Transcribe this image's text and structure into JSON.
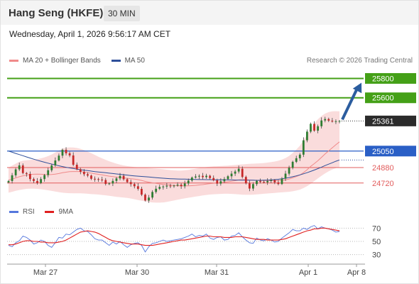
{
  "header": {
    "instrument": "Hang Seng (HKFE)",
    "interval": "30 MIN"
  },
  "datetime": "Wednesday, April 1, 2026 9:56:17 AM CET",
  "credit": "Research © 2026 Trading Central",
  "colors": {
    "up_candle": "#2e7d32",
    "down_candle": "#c62828",
    "green_level": "#44a017",
    "blue_level": "#2a5fc6",
    "red_level": "#e25c5c",
    "bollinger_fill": "#f8d0d0",
    "ma20": "#f08a8a",
    "ma50": "#2e4f9a",
    "rsi": "#5577dd",
    "rsi_ma": "#e02020",
    "arrow": "#2b5d9f"
  },
  "chart_data": [
    {
      "type": "candlestick",
      "title": "",
      "legend": [
        {
          "label": "MA 20 + Bollinger Bands",
          "color": "#f08a8a"
        },
        {
          "label": "MA 50",
          "color": "#2e4f9a"
        }
      ],
      "legend_position": "top-left",
      "x_ticks": [
        "Mar 27",
        "Mar 30",
        "Mar 31",
        "Apr 1",
        "Apr 8"
      ],
      "current_price": 25361,
      "levels": [
        {
          "value": 25800,
          "label": "25800",
          "kind": "resistance",
          "style": "box-green"
        },
        {
          "value": 25600,
          "label": "25600",
          "kind": "resistance",
          "style": "box-green"
        },
        {
          "value": 25361,
          "label": "25361",
          "kind": "last-price",
          "style": "box-dark"
        },
        {
          "value": 25050,
          "label": "25050",
          "kind": "pivot",
          "style": "box-blue"
        },
        {
          "value": 24880,
          "label": "24880",
          "kind": "support",
          "style": "text-red"
        },
        {
          "value": 24720,
          "label": "24720",
          "kind": "support",
          "style": "text-red"
        }
      ],
      "ylim": [
        24440,
        25950
      ],
      "close": [
        24741,
        24800,
        24861,
        24902,
        24823,
        24814,
        24761,
        24741,
        24721,
        24761,
        24802,
        24852,
        24902,
        24953,
        25003,
        25063,
        25027,
        25005,
        24909,
        24862,
        24836,
        24811,
        24797,
        24764,
        24761,
        24756,
        24751,
        24711,
        24716,
        24742,
        24768,
        24794,
        24759,
        24730,
        24709,
        24687,
        24660,
        24600,
        24540,
        24570,
        24628,
        24661,
        24680,
        24684,
        24693,
        24687,
        24694,
        24703,
        24687,
        24716,
        24746,
        24777,
        24787,
        24794,
        24781,
        24795,
        24772,
        24748,
        24714,
        24738,
        24761,
        24790,
        24817,
        24839,
        24868,
        24783,
        24717,
        24663,
        24709,
        24742,
        24732,
        24727,
        24741,
        24750,
        24727,
        24710,
        24766,
        24817,
        24878,
        24939,
        24976,
        25013,
        25161,
        25251,
        25331,
        25261,
        25306,
        25366,
        25381,
        25364,
        25355,
        25358,
        25361
      ],
      "ma20": [
        24750,
        24760,
        24772,
        24785,
        24795,
        24802,
        24808,
        24811,
        24812,
        24811,
        24808,
        24806,
        24808,
        24812,
        24818,
        24826,
        24832,
        24837,
        24839,
        24839,
        24837,
        24833,
        24828,
        24822,
        24816,
        24810,
        24804,
        24797,
        24791,
        24786,
        24781,
        24777,
        24773,
        24769,
        24765,
        24760,
        24755,
        24747,
        24737,
        24729,
        24722,
        24716,
        24711,
        24706,
        24702,
        24698,
        24695,
        24693,
        24691,
        24691,
        24691,
        24693,
        24696,
        24700,
        24704,
        24709,
        24714,
        24718,
        24721,
        24725,
        24729,
        24733,
        24738,
        24744,
        24752,
        24755,
        24755,
        24751,
        24748,
        24747,
        24746,
        24745,
        24745,
        24746,
        24746,
        24745,
        24748,
        24753,
        24762,
        24774,
        24787,
        24802,
        24827,
        24857,
        24892,
        24920,
        24950,
        24985,
        25020,
        25052,
        25084,
        25115,
        25145
      ],
      "bb_upper": [
        24880,
        24900,
        24920,
        24940,
        24950,
        24955,
        24958,
        24962,
        24967,
        24975,
        24985,
        24998,
        25015,
        25035,
        25055,
        25075,
        25085,
        25088,
        25087,
        25082,
        25073,
        25060,
        25045,
        25028,
        25010,
        24992,
        24975,
        24960,
        24945,
        24932,
        24920,
        24910,
        24902,
        24895,
        24890,
        24886,
        24883,
        24880,
        24877,
        24875,
        24872,
        24869,
        24866,
        24862,
        24858,
        24854,
        24851,
        24849,
        24849,
        24852,
        24856,
        24862,
        24868,
        24874,
        24880,
        24885,
        24889,
        24892,
        24894,
        24896,
        24898,
        24900,
        24903,
        24906,
        24910,
        24913,
        24916,
        24918,
        24920,
        24922,
        24924,
        24927,
        24931,
        24936,
        24942,
        24950,
        24962,
        24978,
        25000,
        25030,
        25065,
        25105,
        25160,
        25220,
        25285,
        25335,
        25378,
        25412,
        25437,
        25452,
        25460,
        25462,
        25460
      ],
      "bb_lower": [
        24620,
        24630,
        24640,
        24648,
        24655,
        24660,
        24662,
        24662,
        24660,
        24656,
        24651,
        24645,
        24639,
        24632,
        24626,
        24620,
        24617,
        24615,
        24614,
        24614,
        24614,
        24612,
        24609,
        24606,
        24604,
        24601,
        24597,
        24593,
        24588,
        24583,
        24578,
        24574,
        24570,
        24566,
        24560,
        24553,
        24545,
        24538,
        24530,
        24524,
        24520,
        24518,
        24518,
        24520,
        24525,
        24532,
        24540,
        24548,
        24555,
        24562,
        24568,
        24574,
        24580,
        24586,
        24592,
        24597,
        24601,
        24604,
        24606,
        24608,
        24609,
        24609,
        24608,
        24606,
        24603,
        24600,
        24598,
        24598,
        24600,
        24603,
        24606,
        24609,
        24612,
        24615,
        24618,
        24621,
        24624,
        24627,
        24630,
        24635,
        24642,
        24652,
        24668,
        24688,
        24712,
        24740,
        24768,
        24795,
        24820,
        24842,
        24860,
        24875,
        24886
      ],
      "ma50": [
        25050,
        25038,
        25026,
        25014,
        25002,
        24990,
        24978,
        24966,
        24955,
        24945,
        24935,
        24925,
        24916,
        24907,
        24898,
        24890,
        24883,
        24876,
        24870,
        24864,
        24858,
        24853,
        24848,
        24843,
        24838,
        24834,
        24830,
        24826,
        24822,
        24818,
        24814,
        24810,
        24806,
        24802,
        24798,
        24794,
        24791,
        24788,
        24785,
        24782,
        24779,
        24776,
        24773,
        24770,
        24767,
        24765,
        24763,
        24762,
        24761,
        24760,
        24759,
        24758,
        24757,
        24756,
        24756,
        24755,
        24755,
        24754,
        24754,
        24753,
        24753,
        24752,
        24752,
        24751,
        24751,
        24750,
        24750,
        24749,
        24749,
        24748,
        24748,
        24749,
        24750,
        24752,
        24755,
        24759,
        24764,
        24770,
        24777,
        24785,
        24794,
        24804,
        24815,
        24827,
        24840,
        24854,
        24869,
        24884,
        24900,
        24915,
        24930,
        24945,
        24958
      ]
    },
    {
      "type": "line",
      "title": "",
      "legend": [
        {
          "label": "RSI",
          "color": "#5577dd"
        },
        {
          "label": "9MA",
          "color": "#e02020"
        }
      ],
      "legend_position": "top-left",
      "ylim": [
        20,
        80
      ],
      "y_ticks": [
        70,
        50,
        30
      ],
      "x_ticks": [
        "Mar 27",
        "Mar 30",
        "Mar 31",
        "Apr 1",
        "Apr 8"
      ],
      "series": [
        {
          "name": "RSI",
          "values": [
            44,
            42,
            48,
            51,
            58,
            56,
            52,
            46,
            48,
            52,
            50,
            44,
            41,
            48,
            56,
            55,
            61,
            60,
            64,
            68,
            70,
            66,
            65,
            60,
            54,
            52,
            52,
            48,
            44,
            49,
            46,
            50,
            45,
            41,
            45,
            47,
            48,
            44,
            34,
            42,
            47,
            48,
            50,
            52,
            50,
            51,
            52,
            53,
            54,
            56,
            58,
            61,
            57,
            59,
            58,
            61,
            55,
            53,
            56,
            57,
            52,
            53,
            58,
            59,
            63,
            57,
            52,
            48,
            47,
            55,
            52,
            51,
            54,
            52,
            49,
            50,
            55,
            59,
            63,
            68,
            66,
            66,
            70,
            68,
            72,
            74,
            69,
            72,
            70,
            69,
            67,
            64,
            65
          ]
        },
        {
          "name": "9MA",
          "values": [
            45,
            45,
            46,
            48,
            50,
            51,
            51,
            50,
            50,
            49,
            49,
            48,
            48,
            48,
            49,
            50,
            52,
            55,
            58,
            61,
            64,
            65,
            66,
            65,
            64,
            62,
            59,
            56,
            53,
            51,
            50,
            49,
            48,
            47,
            46,
            46,
            46,
            45,
            44,
            44,
            44,
            45,
            46,
            47,
            48,
            49,
            50,
            51,
            52,
            52,
            53,
            54,
            55,
            56,
            57,
            58,
            58,
            57,
            57,
            57,
            56,
            56,
            56,
            57,
            57,
            57,
            56,
            55,
            54,
            53,
            53,
            53,
            52,
            52,
            52,
            52,
            53,
            54,
            56,
            58,
            60,
            62,
            64,
            66,
            67,
            69,
            69,
            70,
            70,
            69,
            68,
            67,
            66
          ]
        }
      ]
    }
  ]
}
